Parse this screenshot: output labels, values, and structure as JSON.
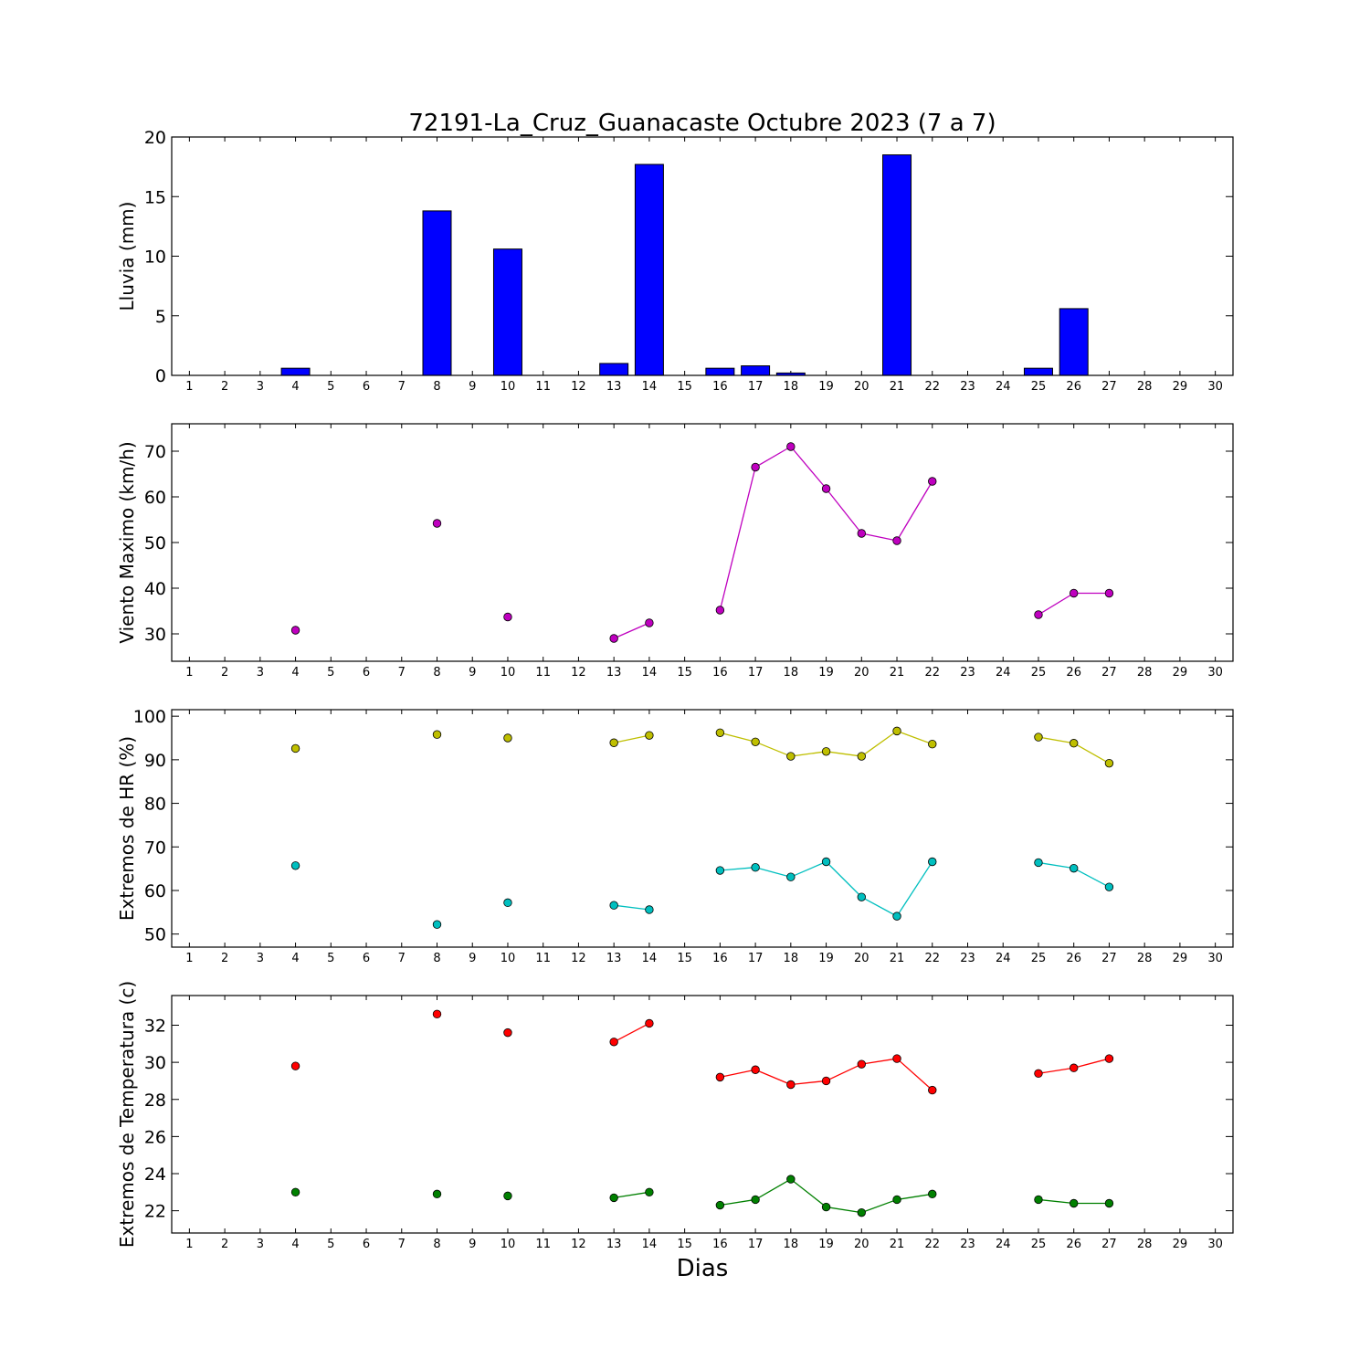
{
  "figure_title": "72191-La_Cruz_Guanacaste Octubre 2023  (7 a 7)",
  "shared_xlabel": "Dias",
  "chart_data": [
    {
      "type": "bar",
      "title": "72191-La_Cruz_Guanacaste Octubre 2023  (7 a 7)",
      "ylabel": "Lluvia (mm)",
      "xlabel": "",
      "xlim": [
        0.5,
        30.5
      ],
      "ylim": [
        0,
        20
      ],
      "yticks": [
        0,
        5,
        10,
        15,
        20
      ],
      "xticks": [
        1,
        2,
        3,
        4,
        5,
        6,
        7,
        8,
        9,
        10,
        11,
        12,
        13,
        14,
        15,
        16,
        17,
        18,
        19,
        20,
        21,
        22,
        23,
        24,
        25,
        26,
        27,
        28,
        29,
        30
      ],
      "color": "#0000ff",
      "series": [
        {
          "x": [
            4,
            8,
            10,
            13,
            14,
            16,
            17,
            18,
            21,
            25,
            26
          ],
          "values": [
            0.6,
            13.8,
            10.6,
            1.0,
            17.7,
            0.6,
            0.8,
            0.2,
            18.5,
            0.6,
            5.6
          ]
        }
      ]
    },
    {
      "type": "line",
      "ylabel": "Viento Maximo (km/h)",
      "xlabel": "",
      "xlim": [
        0.5,
        30.5
      ],
      "ylim": [
        24,
        76
      ],
      "yticks": [
        30,
        40,
        50,
        60,
        70
      ],
      "xticks": [
        1,
        2,
        3,
        4,
        5,
        6,
        7,
        8,
        9,
        10,
        11,
        12,
        13,
        14,
        15,
        16,
        17,
        18,
        19,
        20,
        21,
        22,
        23,
        24,
        25,
        26,
        27,
        28,
        29,
        30
      ],
      "series": [
        {
          "color": "#bf00bf",
          "x": [
            1,
            2,
            3,
            4,
            5,
            6,
            7,
            8,
            9,
            10,
            11,
            12,
            13,
            14,
            15,
            16,
            17,
            18,
            19,
            20,
            21,
            22,
            23,
            24,
            25,
            26,
            27,
            28,
            29,
            30
          ],
          "values": [
            null,
            null,
            null,
            30.8,
            null,
            null,
            null,
            54.2,
            null,
            33.7,
            null,
            null,
            29.0,
            32.4,
            null,
            35.2,
            66.5,
            71.0,
            61.8,
            52.0,
            50.4,
            63.4,
            null,
            null,
            34.2,
            38.9,
            38.9,
            null,
            null,
            null
          ]
        }
      ]
    },
    {
      "type": "line",
      "ylabel": "Extremos de HR (%)",
      "xlabel": "",
      "xlim": [
        0.5,
        30.5
      ],
      "ylim": [
        47,
        101.5
      ],
      "yticks": [
        50,
        60,
        70,
        80,
        90,
        100
      ],
      "xticks": [
        1,
        2,
        3,
        4,
        5,
        6,
        7,
        8,
        9,
        10,
        11,
        12,
        13,
        14,
        15,
        16,
        17,
        18,
        19,
        20,
        21,
        22,
        23,
        24,
        25,
        26,
        27,
        28,
        29,
        30
      ],
      "series": [
        {
          "color": "#bfbf00",
          "x": [
            1,
            2,
            3,
            4,
            5,
            6,
            7,
            8,
            9,
            10,
            11,
            12,
            13,
            14,
            15,
            16,
            17,
            18,
            19,
            20,
            21,
            22,
            23,
            24,
            25,
            26,
            27,
            28,
            29,
            30
          ],
          "values": [
            null,
            null,
            null,
            92.6,
            null,
            null,
            null,
            95.8,
            null,
            95.0,
            null,
            null,
            93.9,
            95.6,
            null,
            96.2,
            94.1,
            90.8,
            91.9,
            90.8,
            96.6,
            93.6,
            null,
            null,
            95.2,
            93.8,
            89.2,
            null,
            null,
            null
          ]
        },
        {
          "color": "#00bfbf",
          "x": [
            1,
            2,
            3,
            4,
            5,
            6,
            7,
            8,
            9,
            10,
            11,
            12,
            13,
            14,
            15,
            16,
            17,
            18,
            19,
            20,
            21,
            22,
            23,
            24,
            25,
            26,
            27,
            28,
            29,
            30
          ],
          "values": [
            null,
            null,
            null,
            65.7,
            null,
            null,
            null,
            52.2,
            null,
            57.2,
            null,
            null,
            56.6,
            55.6,
            null,
            64.6,
            65.3,
            63.1,
            66.6,
            58.5,
            54.1,
            66.6,
            null,
            null,
            66.4,
            65.1,
            60.8,
            null,
            null,
            null
          ]
        }
      ]
    },
    {
      "type": "line",
      "ylabel": "Extremos de Temperatura (c)",
      "xlabel": "Dias",
      "xlim": [
        0.5,
        30.5
      ],
      "ylim": [
        20.8,
        33.6
      ],
      "yticks": [
        22,
        24,
        26,
        28,
        30,
        32
      ],
      "xticks": [
        1,
        2,
        3,
        4,
        5,
        6,
        7,
        8,
        9,
        10,
        11,
        12,
        13,
        14,
        15,
        16,
        17,
        18,
        19,
        20,
        21,
        22,
        23,
        24,
        25,
        26,
        27,
        28,
        29,
        30
      ],
      "series": [
        {
          "color": "#ff0000",
          "x": [
            1,
            2,
            3,
            4,
            5,
            6,
            7,
            8,
            9,
            10,
            11,
            12,
            13,
            14,
            15,
            16,
            17,
            18,
            19,
            20,
            21,
            22,
            23,
            24,
            25,
            26,
            27,
            28,
            29,
            30
          ],
          "values": [
            null,
            null,
            null,
            29.8,
            null,
            null,
            null,
            32.6,
            null,
            31.6,
            null,
            null,
            31.1,
            32.1,
            null,
            29.2,
            29.6,
            28.8,
            29.0,
            29.9,
            30.2,
            28.5,
            null,
            null,
            29.4,
            29.7,
            30.2,
            null,
            null,
            null
          ]
        },
        {
          "color": "#008000",
          "x": [
            1,
            2,
            3,
            4,
            5,
            6,
            7,
            8,
            9,
            10,
            11,
            12,
            13,
            14,
            15,
            16,
            17,
            18,
            19,
            20,
            21,
            22,
            23,
            24,
            25,
            26,
            27,
            28,
            29,
            30
          ],
          "values": [
            null,
            null,
            null,
            23.0,
            null,
            null,
            null,
            22.9,
            null,
            22.8,
            null,
            null,
            22.7,
            23.0,
            null,
            22.3,
            22.6,
            23.7,
            22.2,
            21.9,
            22.6,
            22.9,
            null,
            null,
            22.6,
            22.4,
            22.4,
            null,
            null,
            null
          ]
        }
      ]
    }
  ]
}
